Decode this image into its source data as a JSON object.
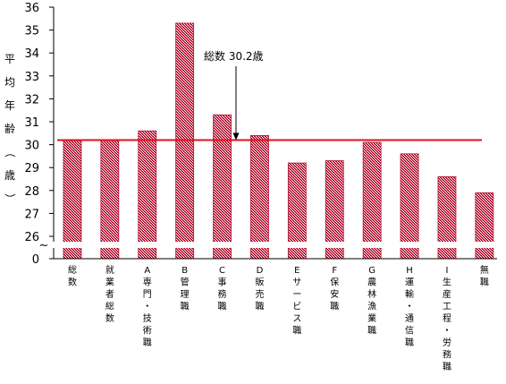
{
  "chart_data": {
    "type": "bar",
    "ylabel": "平均年齢（歳）",
    "ylim": [
      26,
      36
    ],
    "yticks": [
      "36",
      "35",
      "34",
      "33",
      "32",
      "31",
      "30",
      "29",
      "28",
      "27",
      "26",
      "0"
    ],
    "axis_break": true,
    "categories": [
      "総数",
      "就業者総数",
      "A専門・技術職",
      "B管理職",
      "C事務職",
      "D販売職",
      "Eサービス職",
      "F保安職",
      "G農林漁業職",
      "H運輸・通信職",
      "I生産工程・労務職",
      "無職"
    ],
    "values": [
      30.2,
      30.2,
      30.6,
      35.3,
      31.3,
      30.4,
      29.2,
      29.3,
      30.1,
      29.6,
      28.6,
      27.9
    ],
    "reference_line": {
      "value": 30.2,
      "label": "総数 30.2歳"
    },
    "grid": false,
    "colors": {
      "bar_fill": "#cc4c5e",
      "bar_edge": "#b01030",
      "reference_line": "#e0101a",
      "axis": "#000000"
    }
  }
}
